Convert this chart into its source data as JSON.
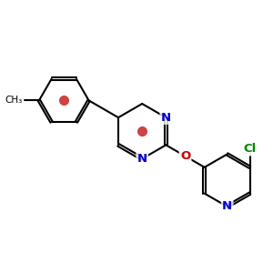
{
  "background": "#ffffff",
  "bond_color": "#000000",
  "bond_width": 1.5,
  "N_color": "#0000cc",
  "O_color": "#cc0000",
  "Cl_color": "#008800",
  "font_size": 9.5,
  "figsize": [
    3.0,
    3.0
  ],
  "dpi": 100,
  "xlim": [
    0,
    10
  ],
  "ylim": [
    0,
    10
  ],
  "aromatic_dot_color": "#cc4444",
  "aromatic_dot_size": 7
}
